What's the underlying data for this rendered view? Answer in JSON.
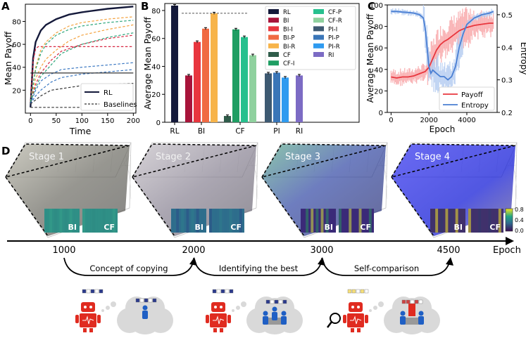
{
  "colors": {
    "rl": "#14193a",
    "baseline_red": "#d62742",
    "baseline_orange": "#f4a13c",
    "baseline_green": "#2aa57a",
    "baseline_blue": "#3b78c2",
    "baseline_black": "#333333",
    "payoff": "#e8363e",
    "entropy": "#4a7fd3",
    "payoff_band": "#f9b4b6",
    "entropy_band": "#b5cdf1",
    "stage1": "#7a7a72",
    "stage2": "#8a8490",
    "stage3": "#3a4aa8",
    "stage4": "#1620e0",
    "arrow": "#000000"
  },
  "chart_data": [
    {
      "panel_label": "A",
      "type": "line",
      "xlabel": "Time",
      "ylabel": "Mean Payoff",
      "xlim": [
        0,
        200
      ],
      "ylim": [
        0,
        95
      ],
      "xticks": [
        0,
        50,
        100,
        150,
        200
      ],
      "yticks": [
        20,
        40,
        60,
        80
      ],
      "grid": false,
      "legend": {
        "position": "bottom-right",
        "entries": [
          "RL",
          "Baselines"
        ]
      },
      "series": [
        {
          "name": "RL",
          "style": "solid",
          "color_key": "rl",
          "x": [
            0,
            5,
            10,
            20,
            30,
            50,
            75,
            100,
            150,
            200
          ],
          "y": [
            5,
            48,
            62,
            72,
            77,
            82,
            86,
            88,
            91,
            93
          ]
        },
        {
          "style": "dashed",
          "color_key": "baseline_red",
          "x": [
            0,
            5,
            10,
            15,
            20,
            200
          ],
          "y": [
            10,
            45,
            56,
            58,
            58,
            58
          ]
        },
        {
          "style": "dashed",
          "color_key": "baseline_orange",
          "x": [
            0,
            10,
            20,
            30,
            50,
            75,
            100,
            150,
            200
          ],
          "y": [
            10,
            40,
            55,
            62,
            70,
            76,
            79,
            82,
            84
          ]
        },
        {
          "style": "dashed",
          "color_key": "baseline_orange",
          "x": [
            0,
            10,
            20,
            30,
            50,
            75,
            100,
            150,
            200
          ],
          "y": [
            10,
            30,
            40,
            47,
            55,
            63,
            68,
            73,
            77
          ]
        },
        {
          "style": "dashed",
          "color_key": "baseline_red",
          "x": [
            0,
            10,
            20,
            40,
            60,
            100,
            150,
            200
          ],
          "y": [
            10,
            25,
            35,
            46,
            54,
            60,
            65,
            68
          ]
        },
        {
          "style": "dashed",
          "color_key": "baseline_green",
          "x": [
            0,
            10,
            20,
            30,
            50,
            75,
            100,
            150,
            200
          ],
          "y": [
            10,
            38,
            52,
            60,
            68,
            73,
            76,
            79,
            81
          ]
        },
        {
          "style": "dashed",
          "color_key": "baseline_green",
          "x": [
            0,
            10,
            20,
            40,
            60,
            100,
            150,
            200
          ],
          "y": [
            10,
            22,
            32,
            42,
            52,
            60,
            66,
            70
          ]
        },
        {
          "style": "dashed",
          "color_key": "baseline_blue",
          "x": [
            0,
            10,
            20,
            40,
            60,
            100,
            150,
            200
          ],
          "y": [
            8,
            20,
            28,
            34,
            38,
            40,
            42,
            44
          ]
        },
        {
          "style": "dashed",
          "color_key": "baseline_blue",
          "x": [
            0,
            10,
            20,
            40,
            60,
            100,
            150,
            200
          ],
          "y": [
            8,
            15,
            20,
            27,
            31,
            34,
            36,
            38
          ]
        },
        {
          "style": "dashed",
          "color_key": "baseline_black",
          "x": [
            0,
            20,
            40,
            100,
            200
          ],
          "y": [
            8,
            15,
            20,
            24,
            26
          ]
        },
        {
          "style": "dashed",
          "color_key": "baseline_black",
          "x": [
            0,
            10,
            200
          ],
          "y": [
            5,
            5,
            5
          ]
        },
        {
          "style": "solid",
          "color_key": "baseline_black",
          "x": [
            0,
            200
          ],
          "y": [
            35,
            35
          ]
        }
      ]
    },
    {
      "panel_label": "B",
      "type": "bar",
      "ylabel": "Average Mean Payoff",
      "ylim": [
        0,
        85
      ],
      "yticks": [
        0,
        20,
        40,
        60,
        80
      ],
      "group_labels": [
        "RL",
        "BI",
        "CF",
        "PI",
        "RI"
      ],
      "reference_line": 78,
      "legend": {
        "position": "right",
        "columns": 2
      },
      "bars": [
        {
          "name": "RL",
          "group": "RL",
          "value": 83.5,
          "color": "#14193a"
        },
        {
          "name": "BI",
          "group": "BI",
          "value": 33.5,
          "color": "#a8143a"
        },
        {
          "name": "BI-I",
          "group": "BI",
          "value": 57.5,
          "color": "#e8363e"
        },
        {
          "name": "BI-P",
          "group": "BI",
          "value": 67,
          "color": "#f06a43"
        },
        {
          "name": "BI-R",
          "group": "BI",
          "value": 78,
          "color": "#f7b44a"
        },
        {
          "name": "CF",
          "group": "CF",
          "value": 4.5,
          "color": "#2f5c4a"
        },
        {
          "name": "CF-I",
          "group": "CF",
          "value": 66.5,
          "color": "#1f9e63"
        },
        {
          "name": "CF-P",
          "group": "CF",
          "value": 61,
          "color": "#27c08e"
        },
        {
          "name": "CF-R",
          "group": "CF",
          "value": 48,
          "color": "#8fd19e"
        },
        {
          "name": "PI-I",
          "group": "PI",
          "value": 35,
          "color": "#3e5a72"
        },
        {
          "name": "PI-P",
          "group": "PI",
          "value": 35.5,
          "color": "#3a76b8"
        },
        {
          "name": "PI-R",
          "group": "PI",
          "value": 32,
          "color": "#2f9bf0"
        },
        {
          "name": "RI",
          "group": "RI",
          "value": 33.5,
          "color": "#7c6bc4"
        }
      ]
    },
    {
      "panel_label": "C",
      "type": "line",
      "xlabel": "Epoch",
      "ylabel": "Average Mean Payoff",
      "y2label": "Entropy",
      "xlim": [
        -200,
        5600
      ],
      "ylim": [
        0,
        100
      ],
      "y2lim": [
        0.2,
        0.53
      ],
      "xticks": [
        0,
        2000,
        4000
      ],
      "yticks": [
        0,
        20,
        40,
        60,
        80,
        100
      ],
      "y2ticks": [
        0.2,
        0.3,
        0.4,
        0.5
      ],
      "legend": {
        "position": "bottom-right",
        "entries": [
          "Payoff",
          "Entropy"
        ]
      },
      "series": [
        {
          "name": "Payoff",
          "axis": "left",
          "color_key": "payoff",
          "x": [
            0,
            300,
            600,
            900,
            1200,
            1500,
            1800,
            2000,
            2200,
            2400,
            2600,
            2800,
            3000,
            3300,
            3600,
            4000,
            4400,
            4800,
            5200,
            5400
          ],
          "y": [
            33,
            32,
            33,
            33,
            34,
            36,
            38,
            42,
            50,
            58,
            63,
            66,
            68,
            72,
            76,
            79,
            81,
            82,
            83,
            83
          ]
        },
        {
          "name": "Entropy",
          "axis": "right",
          "color_key": "entropy",
          "x": [
            0,
            300,
            600,
            900,
            1200,
            1500,
            1700,
            1800,
            1900,
            2000,
            2100,
            2200,
            2400,
            2600,
            2800,
            3000,
            3200,
            3400,
            3600,
            3800,
            4000,
            4400,
            4800,
            5200,
            5400
          ],
          "y": [
            0.51,
            0.51,
            0.508,
            0.507,
            0.505,
            0.5,
            0.49,
            0.46,
            0.4,
            0.34,
            0.32,
            0.33,
            0.32,
            0.31,
            0.31,
            0.3,
            0.31,
            0.34,
            0.4,
            0.44,
            0.47,
            0.49,
            0.5,
            0.505,
            0.51
          ]
        }
      ]
    }
  ],
  "panel_d": {
    "label": "D",
    "stages": [
      {
        "title": "Stage 1",
        "color_key": "stage1",
        "inset_labels": [
          "BI",
          "CF"
        ]
      },
      {
        "title": "Stage 2",
        "color_key": "stage2",
        "inset_labels": [
          "BI",
          "CF"
        ]
      },
      {
        "title": "Stage 3",
        "color_key": "stage3",
        "inset_labels": [
          "BI",
          "CF"
        ]
      },
      {
        "title": "Stage 4",
        "color_key": "stage4",
        "inset_labels": [
          "BI",
          "CF"
        ]
      }
    ],
    "colorbar": {
      "ticks": [
        "0.8",
        "0.4",
        "0.0"
      ]
    },
    "timeline": {
      "axis_label": "Epoch",
      "ticks": [
        "1000",
        "2000",
        "3000",
        "4500"
      ],
      "transitions": [
        "Concept of copying",
        "Identifying the best",
        "Self-comparison"
      ]
    }
  }
}
